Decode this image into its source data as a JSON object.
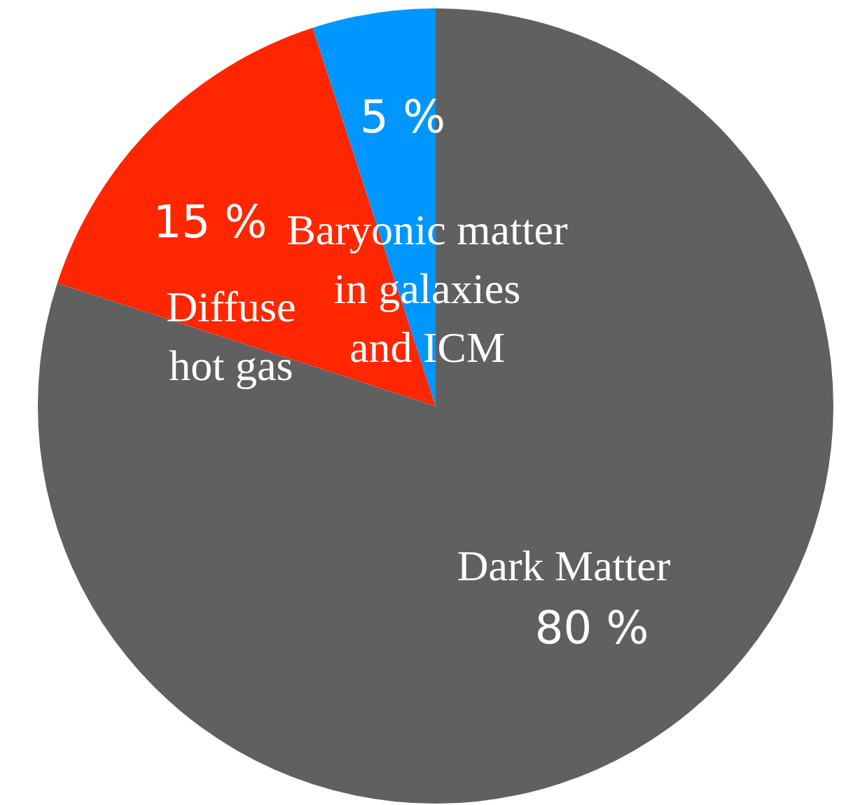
{
  "chart_data": {
    "type": "pie",
    "categories": [
      "Dark Matter",
      "Diffuse hot gas",
      "Baryonic matter in galaxies and ICM"
    ],
    "values": [
      80,
      15,
      5
    ],
    "colors": [
      "#606060",
      "#ff2600",
      "#0096ff"
    ],
    "value_labels": [
      "80 %",
      "15 %",
      "5 %"
    ]
  }
}
